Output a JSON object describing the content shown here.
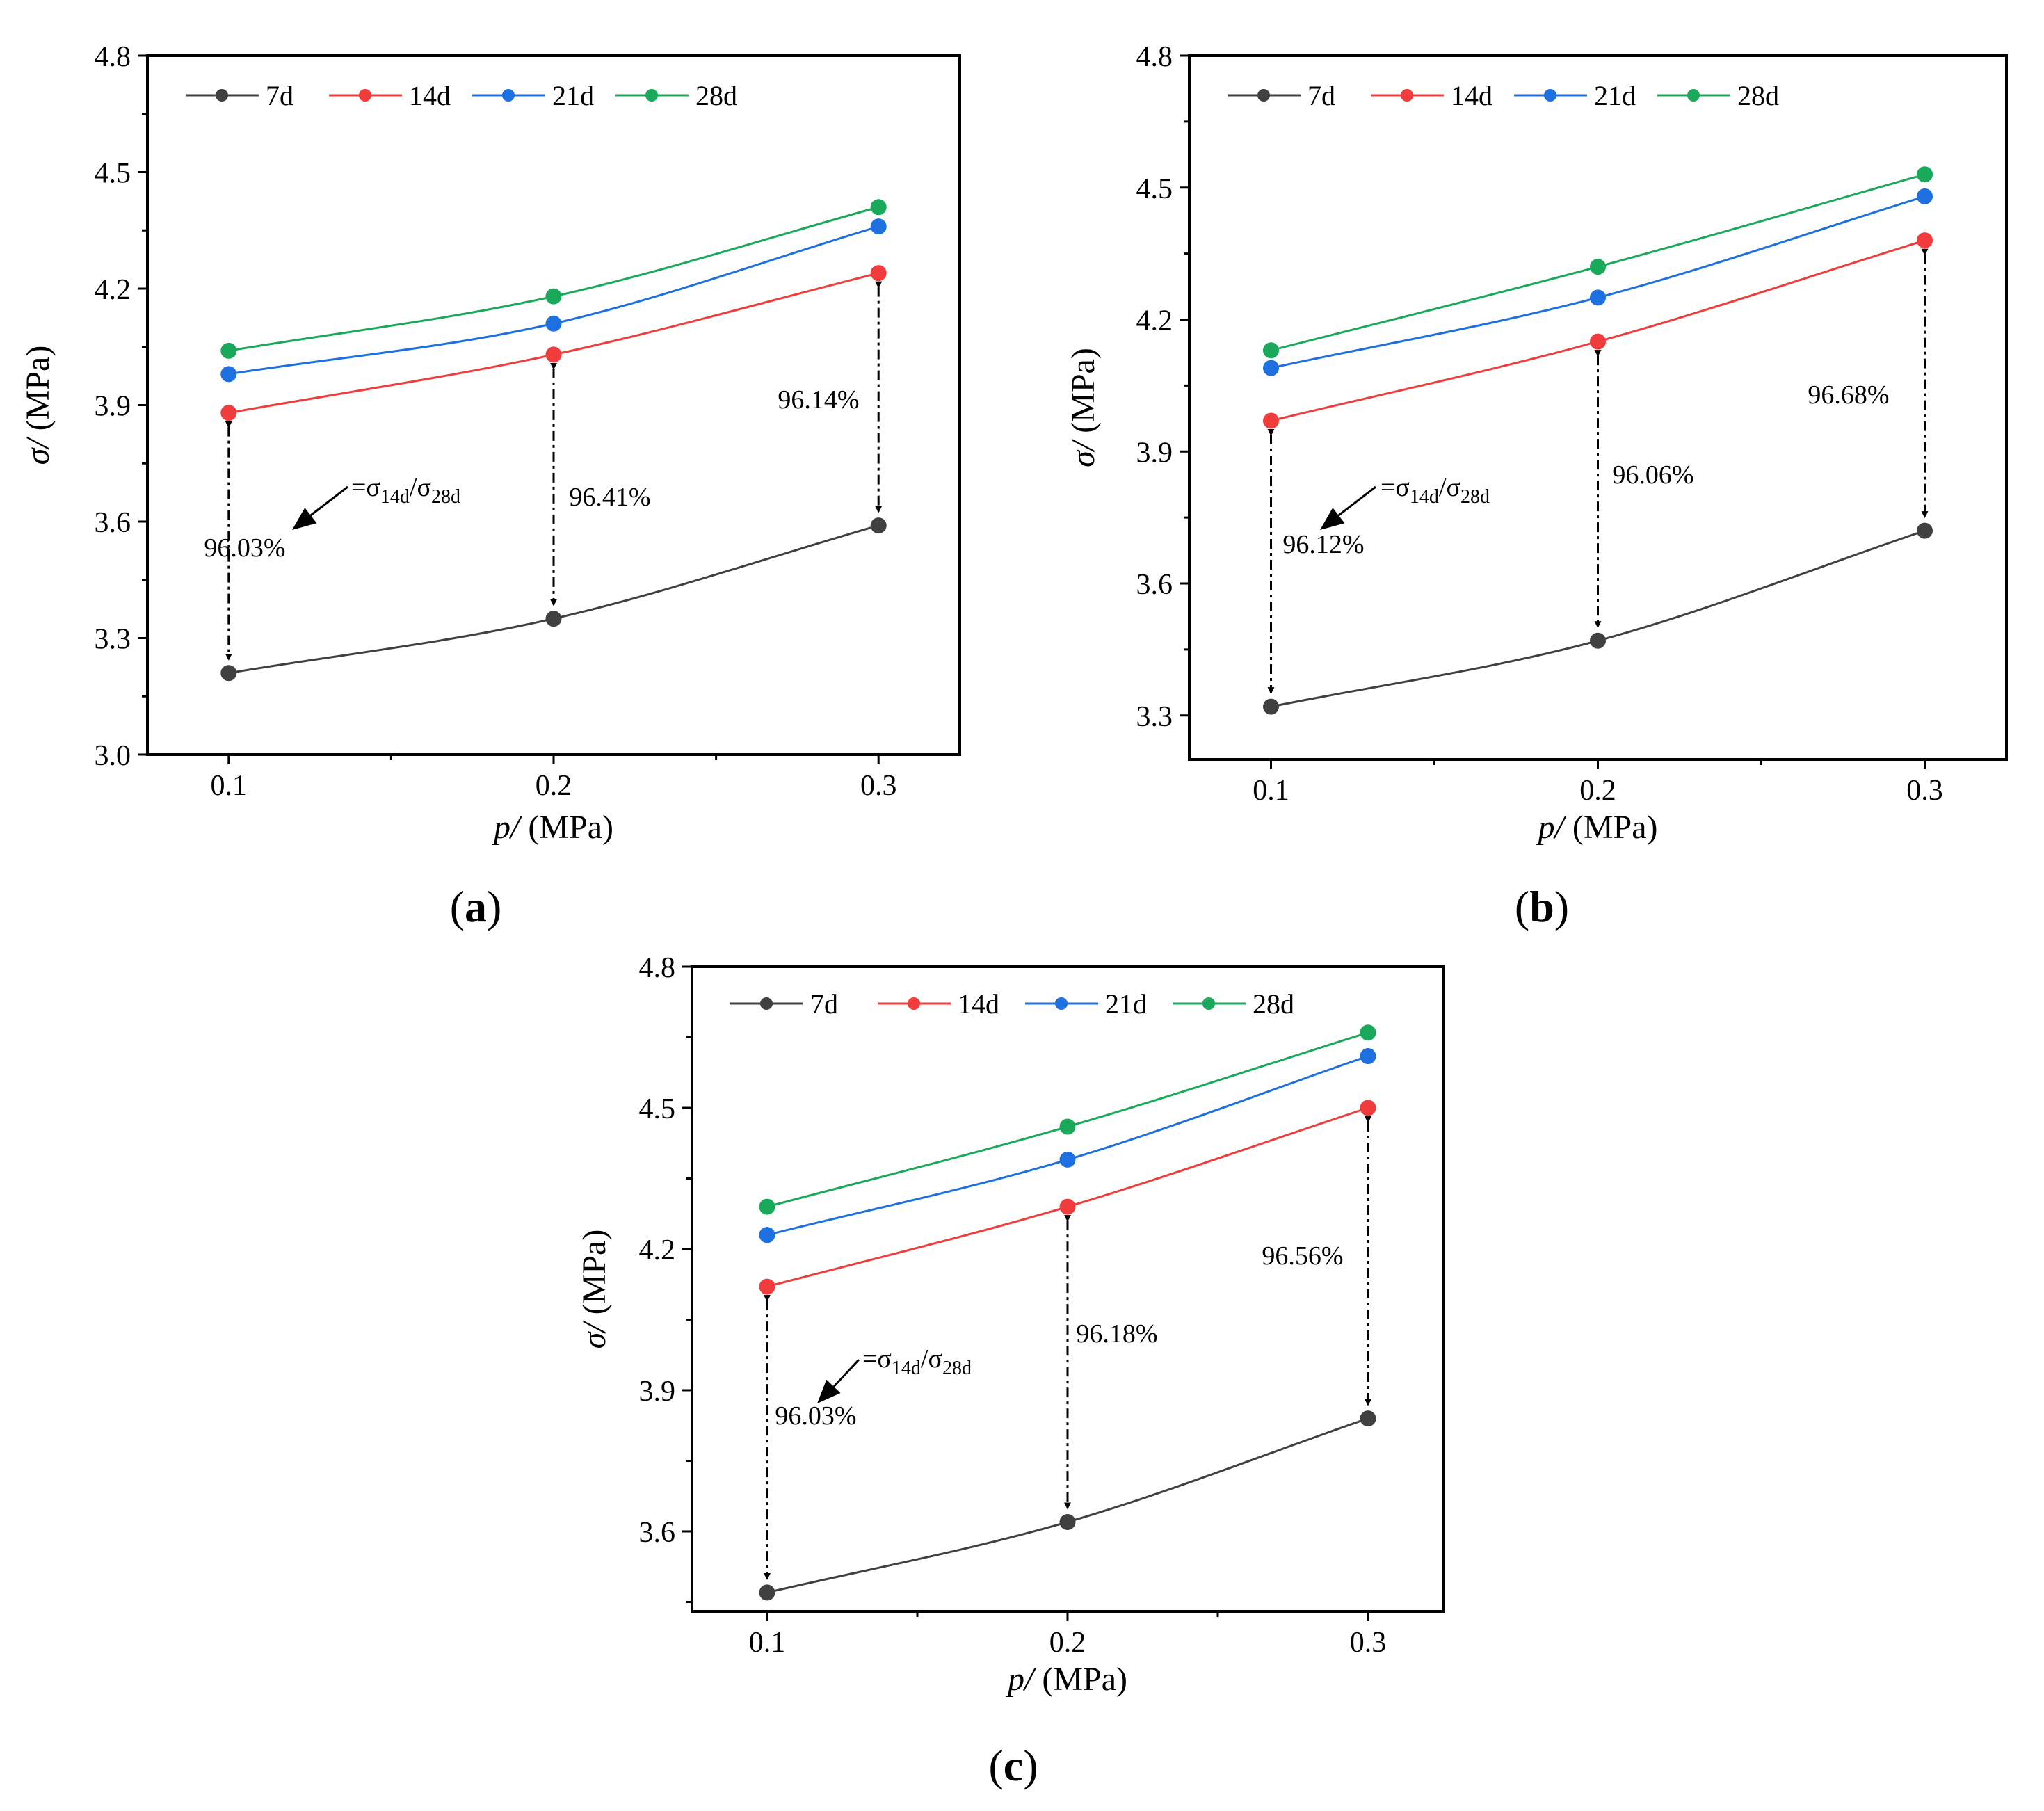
{
  "chart_data": [
    {
      "type": "line",
      "panel_label": "(a)",
      "xlabel": "(MPa)",
      "xlabel_var": "p/",
      "ylabel": "(MPa)",
      "ylabel_var": "σ/",
      "xlim": [
        0.075,
        0.325
      ],
      "ylim": [
        3.0,
        4.8
      ],
      "xticks": [
        "0.1",
        "0.2",
        "0.3"
      ],
      "yticks": [
        "3.0",
        "3.3",
        "3.6",
        "3.9",
        "4.2",
        "4.5",
        "4.8"
      ],
      "x": [
        0.1,
        0.2,
        0.3
      ],
      "series": [
        {
          "name": "7d",
          "values": [
            3.21,
            3.35,
            3.59
          ],
          "color": "#404040"
        },
        {
          "name": "14d",
          "values": [
            3.88,
            4.03,
            4.24
          ],
          "color": "#f03c3c"
        },
        {
          "name": "21d",
          "values": [
            3.98,
            4.11,
            4.36
          ],
          "color": "#1e6fe0"
        },
        {
          "name": "28d",
          "values": [
            4.04,
            4.18,
            4.41
          ],
          "color": "#1aa85a"
        }
      ],
      "ratio_labels": [
        "96.03%",
        "96.41%",
        "96.14%"
      ],
      "annotation": {
        "prefix": "=σ",
        "sub1": "14d",
        "mid": "/σ",
        "sub2": "28d"
      }
    },
    {
      "type": "line",
      "panel_label": "(b)",
      "xlabel": "(MPa)",
      "xlabel_var": "p/",
      "ylabel": "(MPa)",
      "ylabel_var": "σ/",
      "xlim": [
        0.075,
        0.325
      ],
      "ylim": [
        3.2,
        4.8
      ],
      "xticks": [
        "0.1",
        "0.2",
        "0.3"
      ],
      "yticks": [
        "3.3",
        "3.6",
        "3.9",
        "4.2",
        "4.5",
        "4.8"
      ],
      "x": [
        0.1,
        0.2,
        0.3
      ],
      "series": [
        {
          "name": "7d",
          "values": [
            3.32,
            3.47,
            3.72
          ],
          "color": "#404040"
        },
        {
          "name": "14d",
          "values": [
            3.97,
            4.15,
            4.38
          ],
          "color": "#f03c3c"
        },
        {
          "name": "21d",
          "values": [
            4.09,
            4.25,
            4.48
          ],
          "color": "#1e6fe0"
        },
        {
          "name": "28d",
          "values": [
            4.13,
            4.32,
            4.53
          ],
          "color": "#1aa85a"
        }
      ],
      "ratio_labels": [
        "96.12%",
        "96.06%",
        "96.68%"
      ],
      "annotation": {
        "prefix": "=σ",
        "sub1": "14d",
        "mid": "/σ",
        "sub2": "28d"
      }
    },
    {
      "type": "line",
      "panel_label": "(c)",
      "xlabel": "(MPa)",
      "xlabel_var": "p/",
      "ylabel": "(MPa)",
      "ylabel_var": "σ/",
      "xlim": [
        0.075,
        0.325
      ],
      "ylim": [
        3.43,
        4.8
      ],
      "xticks": [
        "0.1",
        "0.2",
        "0.3"
      ],
      "yticks": [
        "3.6",
        "3.9",
        "4.2",
        "4.5",
        "4.8"
      ],
      "x": [
        0.1,
        0.2,
        0.3
      ],
      "series": [
        {
          "name": "7d",
          "values": [
            3.47,
            3.62,
            3.84
          ],
          "color": "#404040"
        },
        {
          "name": "14d",
          "values": [
            4.12,
            4.29,
            4.5
          ],
          "color": "#f03c3c"
        },
        {
          "name": "21d",
          "values": [
            4.23,
            4.39,
            4.61
          ],
          "color": "#1e6fe0"
        },
        {
          "name": "28d",
          "values": [
            4.29,
            4.46,
            4.66
          ],
          "color": "#1aa85a"
        }
      ],
      "ratio_labels": [
        "96.03%",
        "96.18%",
        "96.56%"
      ],
      "annotation": {
        "prefix": "=σ",
        "sub1": "14d",
        "mid": "/σ",
        "sub2": "28d"
      }
    }
  ]
}
